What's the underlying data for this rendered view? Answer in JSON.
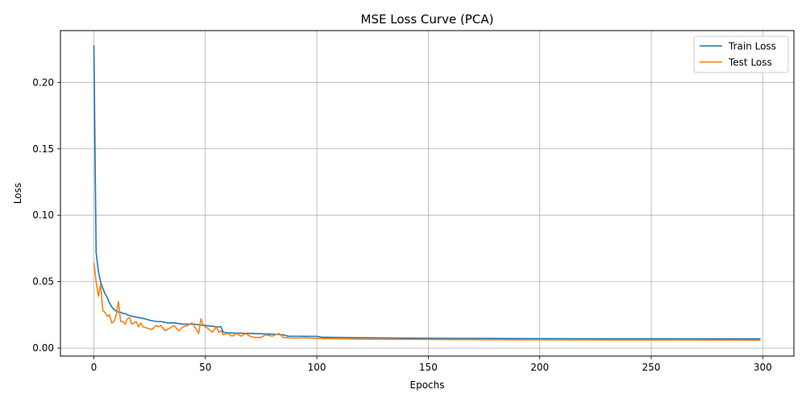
{
  "chart_data": {
    "type": "line",
    "title": "MSE Loss Curve (PCA)",
    "xlabel": "Epochs",
    "ylabel": "Loss",
    "xlim": [
      -15,
      314
    ],
    "ylim": [
      -0.006,
      0.239
    ],
    "xticks": [
      0,
      50,
      100,
      150,
      200,
      250,
      300
    ],
    "yticks": [
      0.0,
      0.05,
      0.1,
      0.15,
      0.2
    ],
    "ytick_labels": [
      "0.00",
      "0.05",
      "0.10",
      "0.15",
      "0.20"
    ],
    "grid": true,
    "legend_position": "top-right",
    "series": [
      {
        "name": "Train Loss",
        "color": "#1f77b4",
        "points": [
          [
            0,
            0.228
          ],
          [
            1,
            0.072
          ],
          [
            2,
            0.058
          ],
          [
            3,
            0.05
          ],
          [
            4,
            0.045
          ],
          [
            5,
            0.041
          ],
          [
            6,
            0.038
          ],
          [
            7,
            0.034
          ],
          [
            8,
            0.031
          ],
          [
            9,
            0.029
          ],
          [
            10,
            0.028
          ],
          [
            11,
            0.027
          ],
          [
            12,
            0.027
          ],
          [
            13,
            0.026
          ],
          [
            14,
            0.026
          ],
          [
            15,
            0.025
          ],
          [
            17,
            0.024
          ],
          [
            20,
            0.023
          ],
          [
            23,
            0.022
          ],
          [
            25,
            0.021
          ],
          [
            28,
            0.02
          ],
          [
            30,
            0.02
          ],
          [
            33,
            0.019
          ],
          [
            36,
            0.019
          ],
          [
            40,
            0.018
          ],
          [
            45,
            0.018
          ],
          [
            50,
            0.017
          ],
          [
            55,
            0.016
          ],
          [
            57,
            0.016
          ],
          [
            58,
            0.012
          ],
          [
            60,
            0.0115
          ],
          [
            70,
            0.011
          ],
          [
            80,
            0.0105
          ],
          [
            85,
            0.01
          ],
          [
            87,
            0.009
          ],
          [
            100,
            0.0088
          ],
          [
            102,
            0.0082
          ],
          [
            110,
            0.008
          ],
          [
            120,
            0.0078
          ],
          [
            140,
            0.0075
          ],
          [
            160,
            0.0073
          ],
          [
            180,
            0.0072
          ],
          [
            200,
            0.0071
          ],
          [
            230,
            0.007
          ],
          [
            260,
            0.007
          ],
          [
            299,
            0.0069
          ]
        ]
      },
      {
        "name": "Test Loss",
        "color": "#ff7f0e",
        "points": [
          [
            0,
            0.064
          ],
          [
            1,
            0.05
          ],
          [
            2,
            0.039
          ],
          [
            3,
            0.048
          ],
          [
            4,
            0.028
          ],
          [
            5,
            0.027
          ],
          [
            6,
            0.024
          ],
          [
            7,
            0.025
          ],
          [
            8,
            0.019
          ],
          [
            9,
            0.02
          ],
          [
            10,
            0.025
          ],
          [
            11,
            0.035
          ],
          [
            12,
            0.02
          ],
          [
            13,
            0.02
          ],
          [
            14,
            0.018
          ],
          [
            15,
            0.022
          ],
          [
            16,
            0.023
          ],
          [
            17,
            0.018
          ],
          [
            18,
            0.019
          ],
          [
            19,
            0.02
          ],
          [
            20,
            0.016
          ],
          [
            21,
            0.019
          ],
          [
            22,
            0.016
          ],
          [
            24,
            0.015
          ],
          [
            26,
            0.014
          ],
          [
            28,
            0.017
          ],
          [
            29,
            0.016
          ],
          [
            30,
            0.017
          ],
          [
            32,
            0.013
          ],
          [
            34,
            0.015
          ],
          [
            36,
            0.017
          ],
          [
            38,
            0.013
          ],
          [
            40,
            0.016
          ],
          [
            42,
            0.017
          ],
          [
            44,
            0.019
          ],
          [
            46,
            0.014
          ],
          [
            47,
            0.011
          ],
          [
            48,
            0.022
          ],
          [
            49,
            0.017
          ],
          [
            51,
            0.015
          ],
          [
            53,
            0.012
          ],
          [
            55,
            0.016
          ],
          [
            56,
            0.012
          ],
          [
            57,
            0.013
          ],
          [
            58,
            0.01
          ],
          [
            60,
            0.011
          ],
          [
            62,
            0.009
          ],
          [
            64,
            0.011
          ],
          [
            66,
            0.009
          ],
          [
            68,
            0.011
          ],
          [
            70,
            0.009
          ],
          [
            72,
            0.008
          ],
          [
            75,
            0.008
          ],
          [
            77,
            0.01
          ],
          [
            80,
            0.009
          ],
          [
            83,
            0.011
          ],
          [
            85,
            0.008
          ],
          [
            90,
            0.0075
          ],
          [
            95,
            0.0078
          ],
          [
            100,
            0.0072
          ],
          [
            110,
            0.007
          ],
          [
            120,
            0.0068
          ],
          [
            140,
            0.0066
          ],
          [
            160,
            0.0064
          ],
          [
            180,
            0.0063
          ],
          [
            200,
            0.0062
          ],
          [
            230,
            0.0061
          ],
          [
            260,
            0.0061
          ],
          [
            299,
            0.006
          ]
        ]
      }
    ]
  }
}
